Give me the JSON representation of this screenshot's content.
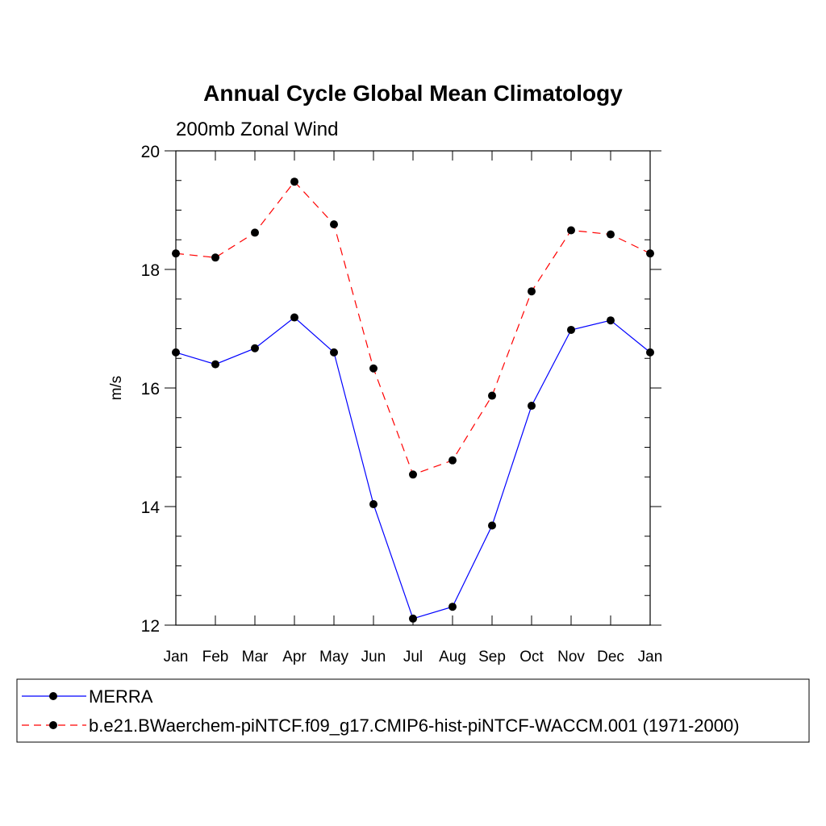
{
  "chart_data": {
    "type": "line",
    "title": "Annual Cycle Global Mean Climatology",
    "subtitle": "200mb Zonal Wind",
    "xlabel": "",
    "ylabel": "m/s",
    "categories": [
      "Jan",
      "Feb",
      "Mar",
      "Apr",
      "May",
      "Jun",
      "Jul",
      "Aug",
      "Sep",
      "Oct",
      "Nov",
      "Dec",
      "Jan"
    ],
    "ylim": [
      12,
      20
    ],
    "yticks": [
      12,
      14,
      16,
      18,
      20
    ],
    "grid": false,
    "legend_position": "bottom",
    "series": [
      {
        "name": "MERRA",
        "color": "#0000ff",
        "dash": "solid",
        "values": [
          16.6,
          16.4,
          16.67,
          17.19,
          16.6,
          14.04,
          12.11,
          12.31,
          13.68,
          15.7,
          16.98,
          17.14,
          16.6
        ]
      },
      {
        "name": "b.e21.BWaerchem-piNTCF.f09_g17.CMIP6-hist-piNTCF-WACCM.001 (1971-2000)",
        "color": "#ff0000",
        "dash": "dashed",
        "values": [
          18.27,
          18.2,
          18.62,
          19.48,
          18.76,
          16.33,
          14.54,
          14.78,
          15.87,
          17.63,
          18.66,
          18.59,
          18.27
        ]
      }
    ]
  }
}
